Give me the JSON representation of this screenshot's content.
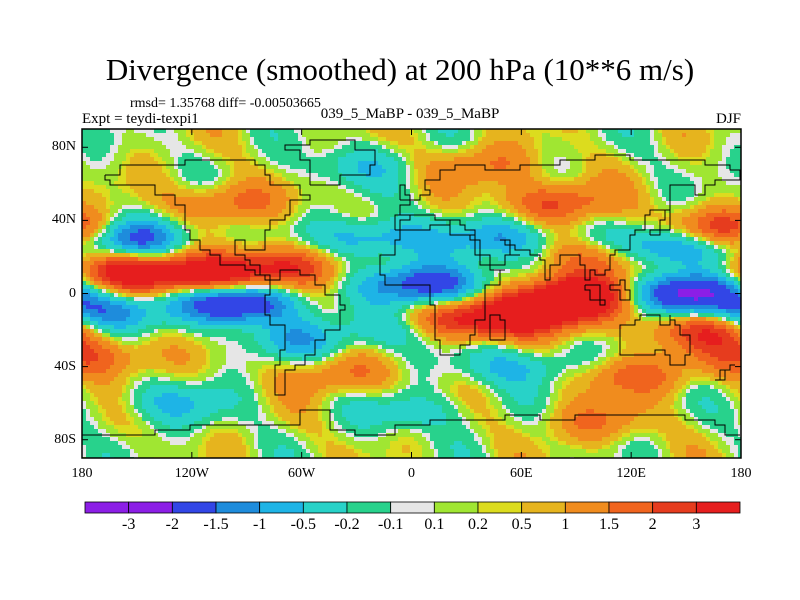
{
  "title": "Divergence (smoothed) at 200 hPa (10**6 m/s)",
  "stats": "rmsd= 1.35768 diff= -0.00503665",
  "experiment": "Expt = teydi-texpi1",
  "comparison": "039_5_MaBP - 039_5_MaBP",
  "season": "DJF",
  "axes": {
    "y_ticks": [
      {
        "label": "80N",
        "lat": 80
      },
      {
        "label": "40N",
        "lat": 40
      },
      {
        "label": "0",
        "lat": 0
      },
      {
        "label": "40S",
        "lat": -40
      },
      {
        "label": "80S",
        "lat": -80
      }
    ],
    "x_ticks": [
      {
        "label": "180",
        "lon": -180
      },
      {
        "label": "120W",
        "lon": -120
      },
      {
        "label": "60W",
        "lon": -60
      },
      {
        "label": "0",
        "lon": 0
      },
      {
        "label": "60E",
        "lon": 60
      },
      {
        "label": "120E",
        "lon": 120
      },
      {
        "label": "180",
        "lon": 180
      }
    ],
    "lon_range": [
      -180,
      180
    ],
    "lat_range": [
      -90,
      90
    ]
  },
  "colorbar": {
    "colors": [
      "#8c1ee6",
      "#3246e6",
      "#1e8cdc",
      "#1eb4e6",
      "#28d2c8",
      "#28d28c",
      "#e6e6e6",
      "#a0e632",
      "#dcdc1e",
      "#e6b41e",
      "#f08c1e",
      "#f0641e",
      "#e63c1e",
      "#e61e1e"
    ],
    "labels": [
      "-3",
      "-2",
      "-1.5",
      "-1",
      "-0.5",
      "-0.2",
      "-0.1",
      "0.1",
      "0.2",
      "0.5",
      "1",
      "1.5",
      "2",
      "3"
    ]
  },
  "field_features": [
    {
      "lon": -150,
      "lat": 30,
      "value": -2.2
    },
    {
      "lon": -155,
      "lat": 12,
      "value": 2.5
    },
    {
      "lon": -110,
      "lat": 10,
      "value": 2.6
    },
    {
      "lon": -165,
      "lat": -10,
      "value": -2.0
    },
    {
      "lon": -95,
      "lat": -5,
      "value": -3.2
    },
    {
      "lon": -70,
      "lat": 15,
      "value": 1.8
    },
    {
      "lon": -20,
      "lat": 30,
      "value": -1.6
    },
    {
      "lon": 10,
      "lat": 5,
      "value": -2.8
    },
    {
      "lon": 30,
      "lat": -15,
      "value": 2.2
    },
    {
      "lon": 70,
      "lat": -10,
      "value": 3.0
    },
    {
      "lon": 90,
      "lat": 0,
      "value": 2.8
    },
    {
      "lon": 150,
      "lat": 0,
      "value": -3.2
    },
    {
      "lon": 140,
      "lat": 25,
      "value": -2.4
    },
    {
      "lon": 170,
      "lat": 35,
      "value": 2.0
    },
    {
      "lon": 80,
      "lat": 50,
      "value": 1.6
    },
    {
      "lon": -100,
      "lat": 50,
      "value": 1.2
    },
    {
      "lon": -170,
      "lat": -35,
      "value": 1.4
    },
    {
      "lon": -40,
      "lat": -45,
      "value": 1.0
    },
    {
      "lon": 60,
      "lat": -40,
      "value": -1.2
    },
    {
      "lon": 120,
      "lat": -45,
      "value": 1.3
    },
    {
      "lon": -60,
      "lat": -25,
      "value": -1.1
    },
    {
      "lon": 160,
      "lat": -20,
      "value": 1.8
    },
    {
      "lon": -30,
      "lat": 70,
      "value": -0.8
    },
    {
      "lon": 40,
      "lat": 70,
      "value": 1.0
    },
    {
      "lon": -130,
      "lat": -60,
      "value": -1.0
    },
    {
      "lon": 0,
      "lat": -65,
      "value": -0.8
    },
    {
      "lon": 100,
      "lat": -70,
      "value": 0.9
    },
    {
      "lon": -10,
      "lat": -20,
      "value": -0.9
    },
    {
      "lon": 50,
      "lat": 30,
      "value": -1.5
    },
    {
      "lon": 110,
      "lat": 20,
      "value": 1.5
    }
  ]
}
